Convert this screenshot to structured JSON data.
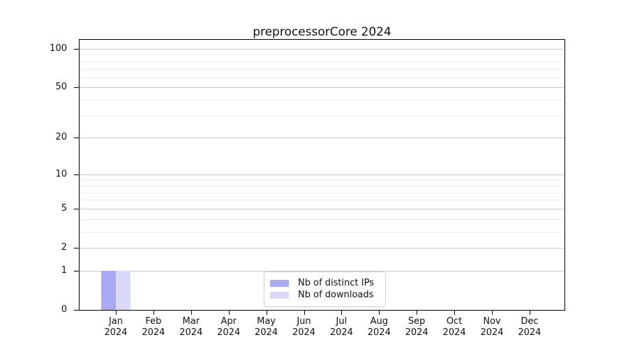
{
  "chart_data": {
    "type": "bar",
    "title": "preprocessorCore 2024",
    "categories": [
      {
        "line1": "Jan",
        "line2": "2024"
      },
      {
        "line1": "Feb",
        "line2": "2024"
      },
      {
        "line1": "Mar",
        "line2": "2024"
      },
      {
        "line1": "Apr",
        "line2": "2024"
      },
      {
        "line1": "May",
        "line2": "2024"
      },
      {
        "line1": "Jun",
        "line2": "2024"
      },
      {
        "line1": "Jul",
        "line2": "2024"
      },
      {
        "line1": "Aug",
        "line2": "2024"
      },
      {
        "line1": "Sep",
        "line2": "2024"
      },
      {
        "line1": "Oct",
        "line2": "2024"
      },
      {
        "line1": "Nov",
        "line2": "2024"
      },
      {
        "line1": "Dec",
        "line2": "2024"
      }
    ],
    "series": [
      {
        "name": "Nb of distinct IPs",
        "color": "#a9a9f4",
        "values": [
          1,
          0,
          0,
          0,
          0,
          0,
          0,
          0,
          0,
          0,
          0,
          0
        ]
      },
      {
        "name": "Nb of downloads",
        "color": "#dadaf8",
        "values": [
          1,
          0,
          0,
          0,
          0,
          0,
          0,
          0,
          0,
          0,
          0,
          0
        ]
      }
    ],
    "xlabel": "",
    "ylabel": "",
    "yscale": "log1p",
    "ylim": [
      0,
      117
    ],
    "yticks": [
      0,
      1,
      2,
      5,
      10,
      20,
      50,
      100
    ],
    "minor_gridlines": [
      3,
      4,
      6,
      7,
      8,
      9,
      30,
      40,
      60,
      70,
      80,
      90
    ],
    "grid": true,
    "legend_position": "lower-center-inside",
    "spine_color": "#000000",
    "major_grid_color": "#c9c9c9",
    "minor_grid_color": "#eaeaea"
  }
}
